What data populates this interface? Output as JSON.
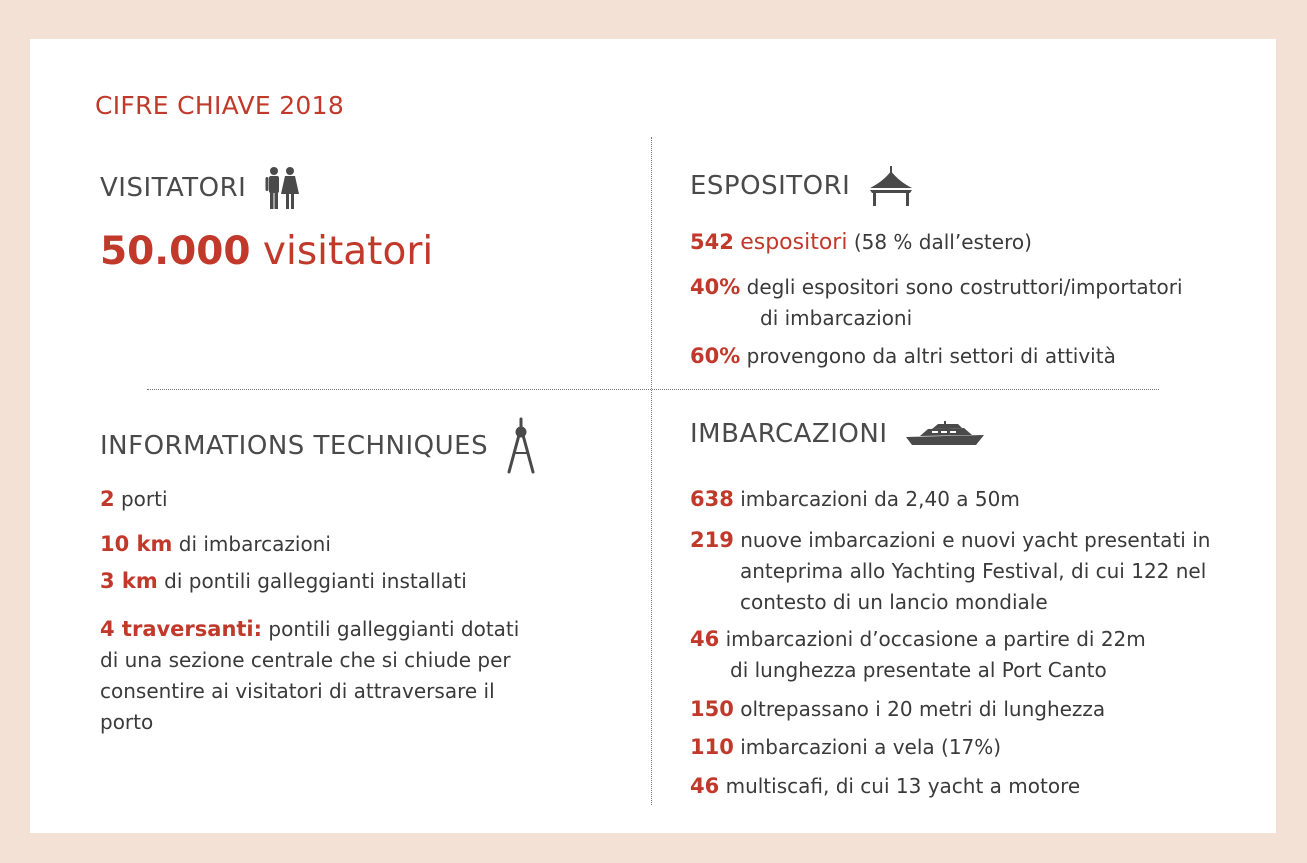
{
  "title": "CIFRE CHIAVE 2018",
  "visitatori": {
    "heading": "VISITATORI",
    "icon": "visitors-icon",
    "number": "50.000",
    "word": "visitatori"
  },
  "espositori": {
    "heading": "ESPOSITORI",
    "icon": "tent-icon",
    "items": [
      {
        "num": "542",
        "accent_text": "espositori",
        "text": "(58 % dall’estero)"
      },
      {
        "num": "40%",
        "text": "degli espositori sono costruttori/importatori",
        "text2": "di imbarcazioni"
      },
      {
        "num": "60%",
        "text": "provengono da altri settori di attività"
      }
    ]
  },
  "tecnica": {
    "heading": "INFORMATIONS TECHNIQUES",
    "icon": "compass-icon",
    "items": [
      {
        "num": "2",
        "text": "porti"
      },
      {
        "num": "10 km",
        "text": "di imbarcazioni"
      },
      {
        "num": "3 km",
        "text": "di pontili galleggianti installati"
      },
      {
        "num": "4 traversanti:",
        "text": "pontili galleggianti dotati",
        "text2": "di una sezione centrale che si chiude per",
        "text3": "consentire ai visitatori di attraversare il",
        "text4": "porto"
      }
    ]
  },
  "imbarcazioni": {
    "heading": "IMBARCAZIONI",
    "icon": "yacht-icon",
    "items": [
      {
        "num": "638",
        "text": "imbarcazioni da 2,40 a 50m"
      },
      {
        "num": "219",
        "text": "nuove imbarcazioni e nuovi yacht presentati in",
        "text2": "anteprima allo Yachting Festival, di cui 122 nel",
        "text3": "contesto di un lancio mondiale"
      },
      {
        "num": "46",
        "text": "imbarcazioni d’occasione a partire di 22m",
        "text2": "di lunghezza presentate al Port Canto"
      },
      {
        "num": "150",
        "text": "oltrepassano i 20 metri di lunghezza"
      },
      {
        "num": "110",
        "text": "imbarcazioni a vela (17%)"
      },
      {
        "num": "46",
        "text": "multiscafi, di cui 13 yacht a motore"
      }
    ]
  },
  "colors": {
    "accent": "#c0392b",
    "text": "#3a3a3a",
    "background": "#f4e1d6",
    "card": "#ffffff"
  }
}
